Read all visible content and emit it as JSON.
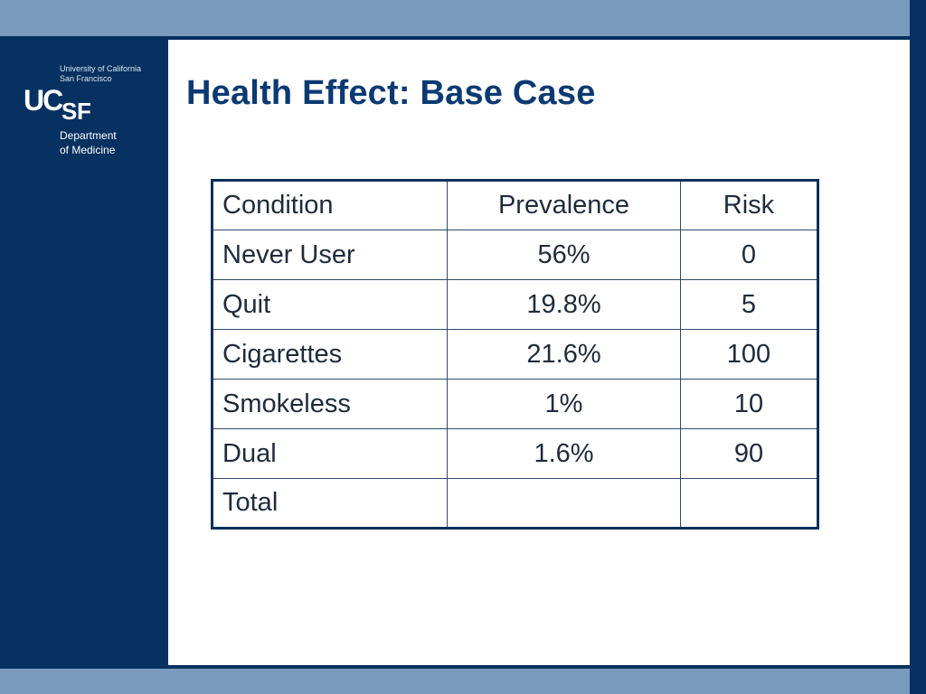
{
  "logo": {
    "university_line1": "University of California",
    "university_line2": "San Francisco",
    "mark_uc": "UC",
    "mark_s": "S",
    "mark_f": "F",
    "department_line1": "Department",
    "department_line2": "of Medicine"
  },
  "slide": {
    "title": "Health Effect: Base Case"
  },
  "table": {
    "headers": [
      "Condition",
      "Prevalence",
      "Risk"
    ],
    "rows": [
      [
        "Never User",
        "56%",
        "0"
      ],
      [
        "Quit",
        "19.8%",
        "5"
      ],
      [
        "Cigarettes",
        "21.6%",
        "100"
      ],
      [
        "Smokeless",
        "1%",
        "10"
      ],
      [
        "Dual",
        "1.6%",
        "90"
      ],
      [
        "Total",
        "",
        ""
      ]
    ]
  },
  "colors": {
    "navy": "#063160",
    "band": "#7a9bbd",
    "title": "#0b3a73",
    "table_border": "#0b2f5c"
  }
}
